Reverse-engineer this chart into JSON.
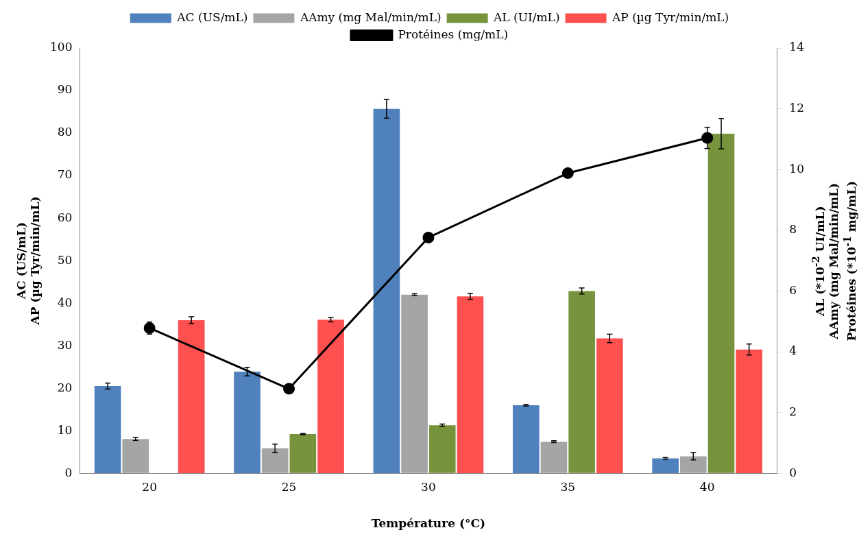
{
  "chart_data": {
    "type": "bar",
    "xlabel": "Température (°C)",
    "ylabel": "AC (US/mL)\nAP (µg Tyr/min/mL)",
    "y2label": "AL (*10$^{-2}$ UI/mL)\nAAmy (mg Mal/min/mL)\nProtéines (*10$^{-1}$ mg/mL)",
    "categories": [
      "20",
      "25",
      "30",
      "35",
      "40"
    ],
    "ylim": [
      0,
      100
    ],
    "yticks": [
      0,
      10,
      20,
      30,
      40,
      50,
      60,
      70,
      80,
      90,
      100
    ],
    "y2lim": [
      0,
      14
    ],
    "y2ticks": [
      0,
      2,
      4,
      6,
      8,
      10,
      12,
      14
    ],
    "legend": "top",
    "grid": false,
    "series": [
      {
        "name": "AC (US/mL)",
        "color": "#4f81bd",
        "values": [
          20.5,
          23.9,
          85.7,
          16.0,
          3.5
        ],
        "errors": [
          0.7,
          1,
          2.2,
          0.2,
          0.2
        ]
      },
      {
        "name": "AAmy (mg Mal/min/mL)",
        "color": "#a5a5a5",
        "axis": "y2",
        "values": [
          1.13,
          0.82,
          5.88,
          1.04,
          0.56
        ],
        "errors": [
          0.05,
          0.14,
          0.03,
          0.03,
          0.12
        ]
      },
      {
        "name": "AL (UI/mL)",
        "color": "#77933c",
        "axis": "y2",
        "values": [
          0,
          1.29,
          1.58,
          6.0,
          11.18
        ],
        "errors": [
          0,
          0.02,
          0.04,
          0.1,
          0.5
        ]
      },
      {
        "name": "AP (µg Tyr/min/mL)",
        "color": "#ff5050",
        "values": [
          36.0,
          36.1,
          41.6,
          31.7,
          29.1
        ],
        "errors": [
          0.8,
          0.5,
          0.7,
          1,
          1.3
        ]
      },
      {
        "name": "Protéines (mg/mL)",
        "type": "line",
        "color": "#000000",
        "axis": "y2",
        "marker": "circle",
        "line_style": "solid",
        "values": [
          4.78,
          2.78,
          7.76,
          9.88,
          11.04
        ],
        "errors": [
          0.2,
          0,
          0,
          0,
          0.35
        ]
      }
    ]
  }
}
